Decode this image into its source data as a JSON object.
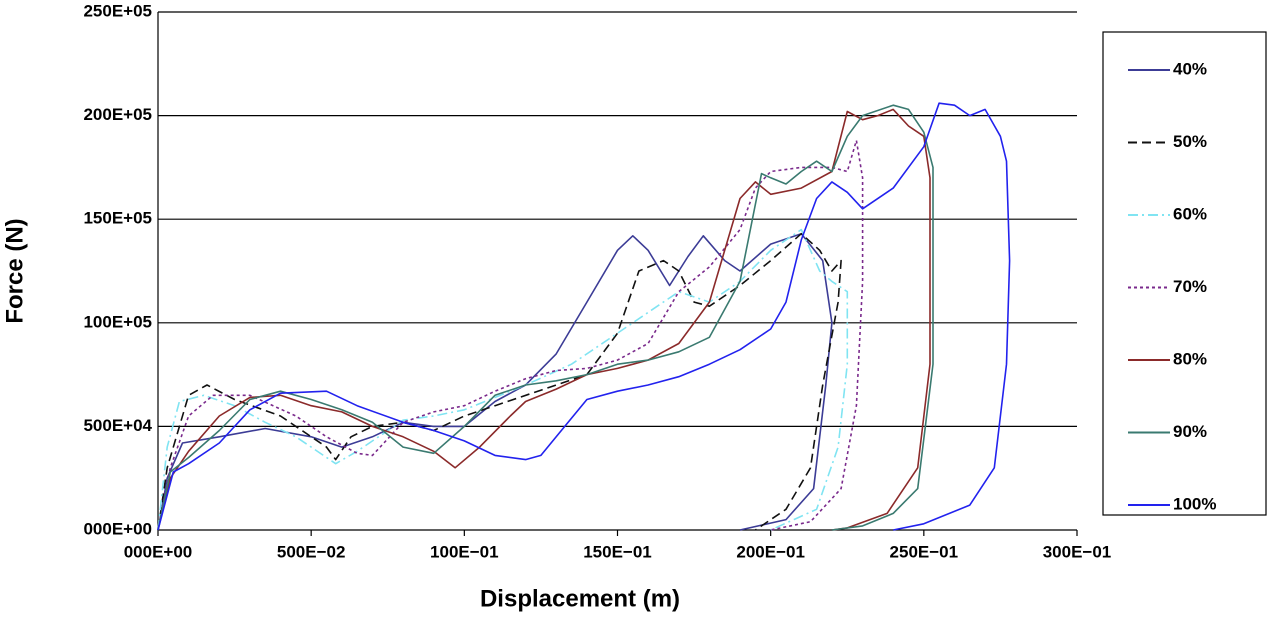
{
  "chart_data": {
    "type": "line",
    "xlabel": "Displacement (m)",
    "ylabel": "Force (N)",
    "xlim": [
      0,
      30
    ],
    "ylim": [
      0,
      25000000
    ],
    "xticks": [
      {
        "value": 0,
        "label": "000E+00"
      },
      {
        "value": 5,
        "label": "500E−02"
      },
      {
        "value": 10,
        "label": "100E−01"
      },
      {
        "value": 15,
        "label": "150E−01"
      },
      {
        "value": 20,
        "label": "200E−01"
      },
      {
        "value": 25,
        "label": "250E−01"
      },
      {
        "value": 30,
        "label": "300E−01"
      }
    ],
    "yticks": [
      {
        "value": 0,
        "label": "000E+00"
      },
      {
        "value": 5000000,
        "label": "500E+04"
      },
      {
        "value": 10000000,
        "label": "100E+05"
      },
      {
        "value": 15000000,
        "label": "150E+05"
      },
      {
        "value": 20000000,
        "label": "200E+05"
      },
      {
        "value": 25000000,
        "label": "250E+05"
      }
    ],
    "grid": true,
    "legend": "right",
    "series": [
      {
        "name": "40%",
        "color": "#3c3c96",
        "dash": "",
        "x": [
          0,
          0.3,
          0.8,
          2,
          3.5,
          5,
          6,
          7,
          8,
          9,
          10,
          11,
          12,
          13,
          14,
          15,
          15.5,
          16,
          16.7,
          17.3,
          17.8,
          18.5,
          19,
          20,
          21,
          21.7,
          22,
          21.8,
          21.4,
          20.5,
          19
        ],
        "values": [
          0,
          2500000.0,
          4200000.0,
          4500000.0,
          4900000.0,
          4500000.0,
          4000000.0,
          4500000.0,
          5200000.0,
          5000000.0,
          5000000.0,
          6200000.0,
          7000000.0,
          8500000.0,
          11000000.0,
          13500000.0,
          14200000.0,
          13500000.0,
          11800000.0,
          13200000.0,
          14200000.0,
          13000000.0,
          12500000.0,
          13800000.0,
          14300000.0,
          13000000.0,
          10000000.0,
          7000000.0,
          2000000.0,
          500000.0,
          0
        ]
      },
      {
        "name": "50%",
        "color": "#111111",
        "dash": "9 5",
        "x": [
          0,
          0.3,
          1,
          1.6,
          2.5,
          4,
          5.5,
          5.8,
          6.3,
          7,
          8,
          9,
          10,
          11,
          13,
          14,
          15,
          15.7,
          16.5,
          17,
          17.5,
          18,
          19,
          20,
          21,
          21.6,
          22,
          22.3,
          22.2,
          21.7,
          21.3,
          20.5,
          19.5
        ],
        "values": [
          0,
          3000000.0,
          6500000.0,
          7000000.0,
          6300000.0,
          5500000.0,
          4000000.0,
          3400000.0,
          4500000.0,
          5000000.0,
          5200000.0,
          4800000.0,
          5500000.0,
          6000000.0,
          7000000.0,
          7500000.0,
          9500000.0,
          12500000.0,
          13000000.0,
          12500000.0,
          11000000.0,
          10800000.0,
          11800000.0,
          13000000.0,
          14300000.0,
          13500000.0,
          12500000.0,
          13000000.0,
          11000000.0,
          7000000.0,
          3000000.0,
          1000000.0,
          0
        ]
      },
      {
        "name": "60%",
        "color": "#80e4f2",
        "dash": "10 4 2 4",
        "x": [
          0,
          0.3,
          0.7,
          1.5,
          2.5,
          3.5,
          4.5,
          5,
          5.8,
          6.5,
          8,
          9,
          10,
          12,
          13.5,
          15,
          16,
          17,
          18,
          19,
          20,
          21,
          21.6,
          22,
          22.5,
          22.5,
          22.2,
          21.5,
          20
        ],
        "values": [
          0,
          4000000.0,
          6200000.0,
          6500000.0,
          6000000.0,
          5200000.0,
          4500000.0,
          4000000.0,
          3200000.0,
          3800000.0,
          5300000.0,
          5500000.0,
          5800000.0,
          7000000.0,
          8000000.0,
          9500000.0,
          10500000.0,
          11500000.0,
          11000000.0,
          12000000.0,
          13500000.0,
          14500000.0,
          12500000.0,
          12000000.0,
          11500000.0,
          8000000.0,
          4000000.0,
          1000000.0,
          0
        ]
      },
      {
        "name": "70%",
        "color": "#7a2a8c",
        "dash": "3 3",
        "x": [
          0,
          0.4,
          1,
          1.8,
          3,
          4.5,
          5.5,
          6.5,
          7,
          8,
          9,
          10,
          11,
          12,
          13,
          14,
          15,
          16,
          17,
          18,
          19,
          19.5,
          20,
          21,
          22,
          22.5,
          22.8,
          23,
          23,
          22.8,
          22.3,
          21.3,
          20
        ],
        "values": [
          0,
          3000000.0,
          5500000.0,
          6500000.0,
          6500000.0,
          5500000.0,
          4500000.0,
          3700000.0,
          3600000.0,
          5200000.0,
          5700000.0,
          6000000.0,
          6700000.0,
          7300000.0,
          7700000.0,
          7800000.0,
          8200000.0,
          9000000.0,
          11500000.0,
          12700000.0,
          14500000.0,
          16500000.0,
          17300000.0,
          17500000.0,
          17500000.0,
          17300000.0,
          18800000.0,
          17000000.0,
          12000000.0,
          6000000.0,
          2000000.0,
          400000.0,
          0
        ]
      },
      {
        "name": "80%",
        "color": "#8b2a2a",
        "dash": "",
        "x": [
          0,
          0.4,
          1,
          2,
          3,
          4,
          5,
          6,
          7,
          8,
          9,
          9.7,
          10.5,
          11.5,
          12,
          13,
          14,
          15,
          16,
          17,
          18,
          19,
          19.5,
          20,
          21,
          22,
          22.5,
          23,
          23.5,
          24,
          24.5,
          25,
          25.2,
          25.2,
          24.8,
          23.8,
          22.5,
          22
        ],
        "values": [
          0,
          2500000.0,
          3800000.0,
          5500000.0,
          6400000.0,
          6500000.0,
          6000000.0,
          5700000.0,
          5000000.0,
          4500000.0,
          3800000.0,
          3000000.0,
          4000000.0,
          5500000.0,
          6200000.0,
          6800000.0,
          7500000.0,
          7800000.0,
          8200000.0,
          9000000.0,
          11000000.0,
          16000000.0,
          16800000.0,
          16200000.0,
          16500000.0,
          17300000.0,
          20200000.0,
          19800000.0,
          20000000.0,
          20300000.0,
          19500000.0,
          19000000.0,
          17000000.0,
          8000000.0,
          3000000.0,
          800000.0,
          100000.0,
          0
        ]
      },
      {
        "name": "90%",
        "color": "#3a7a70",
        "dash": "",
        "x": [
          0,
          0.4,
          1,
          2,
          3,
          4,
          5,
          6,
          7,
          8,
          9,
          10,
          11,
          12,
          13,
          14,
          15,
          16,
          17,
          18,
          19,
          19.7,
          20,
          20.5,
          21,
          21.5,
          22,
          22.5,
          23,
          24,
          24.5,
          25,
          25.3,
          25.3,
          24.8,
          24,
          23,
          22
        ],
        "values": [
          0,
          2800000.0,
          3500000.0,
          4800000.0,
          6300000.0,
          6700000.0,
          6300000.0,
          5800000.0,
          5200000.0,
          4000000.0,
          3700000.0,
          5000000.0,
          6500000.0,
          7000000.0,
          7200000.0,
          7500000.0,
          8000000.0,
          8200000.0,
          8600000.0,
          9300000.0,
          12000000.0,
          17200000.0,
          17000000.0,
          16700000.0,
          17300000.0,
          17800000.0,
          17300000.0,
          19000000.0,
          20000000.0,
          20500000.0,
          20300000.0,
          19200000.0,
          17500000.0,
          8000000.0,
          2000000.0,
          800000.0,
          200000.0,
          0
        ]
      },
      {
        "name": "100%",
        "color": "#2222ee",
        "dash": "",
        "x": [
          0,
          0.5,
          1,
          2,
          3,
          4,
          5.5,
          6.5,
          8,
          9,
          10,
          11,
          12,
          12.5,
          13,
          14,
          15,
          16,
          17,
          18,
          19,
          20,
          20.5,
          21,
          21.5,
          22,
          22.5,
          23,
          24,
          25,
          25.5,
          26,
          26.5,
          27,
          27.5,
          27.7,
          27.8,
          27.7,
          27.3,
          26.5,
          25,
          24
        ],
        "values": [
          0,
          2800000.0,
          3200000.0,
          4200000.0,
          5800000.0,
          6600000.0,
          6700000.0,
          6000000.0,
          5200000.0,
          4800000.0,
          4300000.0,
          3600000.0,
          3400000.0,
          3600000.0,
          4500000.0,
          6300000.0,
          6700000.0,
          7000000.0,
          7400000.0,
          8000000.0,
          8700000.0,
          9700000.0,
          11000000.0,
          14000000.0,
          16000000.0,
          16800000.0,
          16300000.0,
          15500000.0,
          16500000.0,
          18500000.0,
          20600000.0,
          20500000.0,
          20000000.0,
          20300000.0,
          19000000.0,
          17800000.0,
          13000000.0,
          8000000.0,
          3000000.0,
          1200000.0,
          300000.0,
          0
        ]
      }
    ]
  }
}
